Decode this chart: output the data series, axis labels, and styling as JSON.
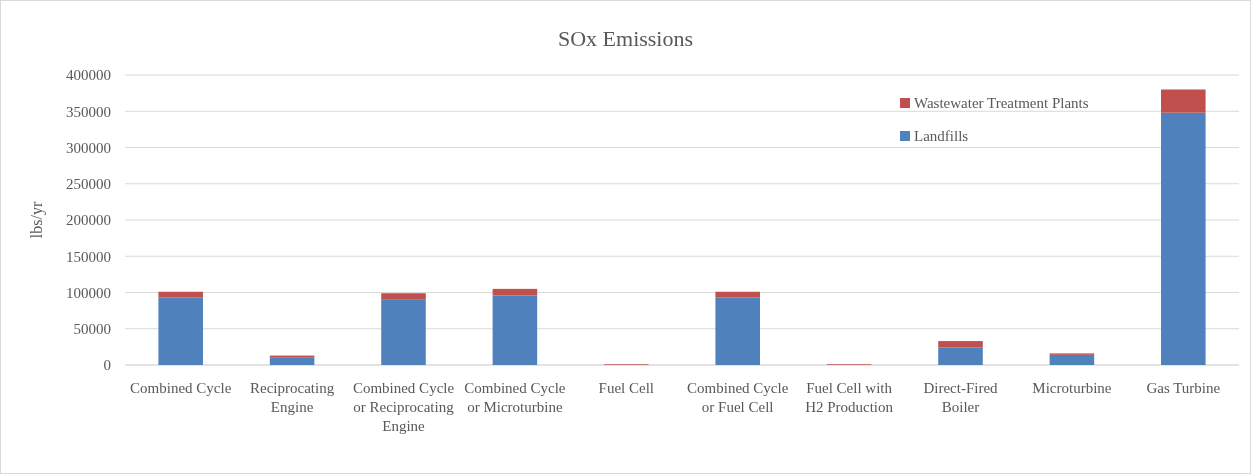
{
  "chart_data": {
    "type": "bar",
    "title": "SOx Emissions",
    "ylabel": "lbs/yr",
    "stacked": true,
    "grid": "y",
    "legend": "top right",
    "categories": [
      "Combined Cycle",
      "Reciprocating Engine",
      "Combined Cycle or Reciprocating Engine",
      "Combined Cycle or Microturbine",
      "Fuel Cell",
      "Combined Cycle or Fuel Cell",
      "Fuel Cell with H2 Production",
      "Direct-Fired Boiler",
      "Microturbine",
      "Gas Turbine"
    ],
    "series": [
      {
        "name": "Landfills",
        "color": "#4f81bd",
        "values": [
          93000,
          10000,
          90000,
          96000,
          0,
          93000,
          0,
          24000,
          14000,
          348000
        ]
      },
      {
        "name": "Wastewater Treatment Plants",
        "color": "#c0504d",
        "values": [
          8000,
          3000,
          9000,
          9000,
          1000,
          8000,
          1000,
          9000,
          2000,
          32000
        ]
      }
    ],
    "ylim": [
      0,
      400000
    ],
    "yticks": [
      0,
      50000,
      100000,
      150000,
      200000,
      250000,
      300000,
      350000,
      400000
    ]
  }
}
